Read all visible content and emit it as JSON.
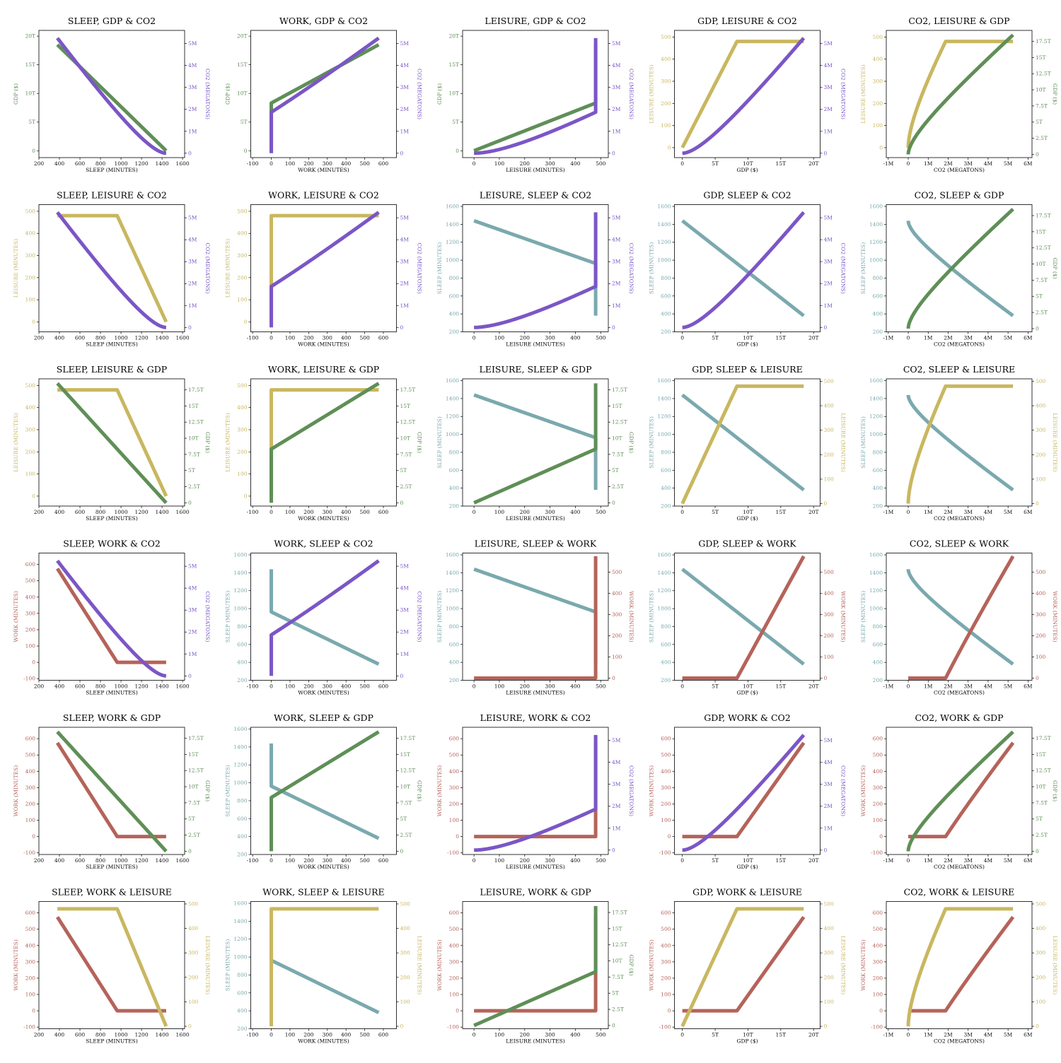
{
  "colors": {
    "SLEEP": "#7aa9ae",
    "WORK": "#b5635a",
    "LEISURE": "#c9b760",
    "GDP": "#5f8f57",
    "CO2": "#7b56c6",
    "axis": "#000000",
    "background": "#ffffff"
  },
  "variables": {
    "SLEEP": {
      "label": "SLEEP (MINUTES)",
      "ticks": [
        200,
        400,
        600,
        800,
        1000,
        1200,
        1400,
        1600
      ],
      "tick_labels": [
        "200",
        "400",
        "600",
        "800",
        "1000",
        "1200",
        "1400",
        "1600"
      ],
      "range": [
        200,
        1620
      ]
    },
    "WORK": {
      "label": "WORK (MINUTES)",
      "ticks": [
        -100,
        0,
        100,
        200,
        300,
        400,
        500,
        600
      ],
      "tick_labels": [
        "-100",
        "0",
        "100",
        "200",
        "300",
        "400",
        "500",
        "600"
      ],
      "range": [
        -110,
        670
      ]
    },
    "LEISURE": {
      "label": "LEISURE (MINUTES)",
      "ticks": [
        0,
        100,
        200,
        300,
        400,
        500
      ],
      "tick_labels": [
        "0",
        "100",
        "200",
        "300",
        "400",
        "500"
      ],
      "range": [
        -45,
        530
      ]
    },
    "GDP": {
      "label": "GDP ($)",
      "ticks": [
        0,
        5,
        10,
        15,
        20
      ],
      "tick_labels": [
        "0",
        "5T",
        "10T",
        "15T",
        "20T"
      ],
      "range": [
        -1.2,
        21
      ]
    },
    "CO2": {
      "label": "CO2 (MEGATONS)",
      "ticks": [
        0,
        1,
        2,
        3,
        4,
        5
      ],
      "tick_labels": [
        "0",
        "1M",
        "2M",
        "3M",
        "4M",
        "5M"
      ],
      "range": [
        -0.2,
        5.6
      ]
    },
    "GDP_twin": {
      "label": "GDP ($)",
      "ticks": [
        0,
        2.5,
        5,
        7.5,
        10,
        12.5,
        15,
        17.5
      ],
      "tick_labels": [
        "0",
        "2.5T",
        "5T",
        "7.5T",
        "10T",
        "12.5T",
        "15T",
        "17.5T"
      ],
      "range": [
        -0.5,
        19.2
      ]
    },
    "LEISURE_twin": {
      "label": "LEISURE (MINUTES)",
      "ticks": [
        0,
        100,
        200,
        300,
        400,
        500
      ],
      "tick_labels": [
        "0",
        "100",
        "200",
        "300",
        "400",
        "500"
      ],
      "range": [
        -10,
        510
      ]
    },
    "WORK_twin": {
      "label": "WORK (MINUTES)",
      "ticks": [
        0,
        100,
        200,
        300,
        400,
        500
      ],
      "tick_labels": [
        "0",
        "100",
        "200",
        "300",
        "400",
        "500"
      ],
      "range": [
        -10,
        590
      ]
    },
    "CO2_twin": {
      "label": "CO2 (MEGATONS)",
      "ticks": [
        0,
        1,
        2,
        3,
        4,
        5
      ],
      "tick_labels": [
        "0",
        "1M",
        "2M",
        "3M",
        "4M",
        "5M"
      ],
      "range": [
        -0.2,
        5.6
      ]
    },
    "CO2_x": {
      "label": "CO2 (MEGATONS)",
      "ticks": [
        -1,
        0,
        1,
        2,
        3,
        4,
        5,
        6
      ],
      "tick_labels": [
        "-1M",
        "0",
        "1M",
        "2M",
        "3M",
        "4M",
        "5M",
        "6M"
      ],
      "range": [
        -1.1,
        6.2
      ]
    },
    "GDP_x": {
      "label": "GDP ($)",
      "ticks": [
        0,
        5,
        10,
        15,
        20
      ],
      "tick_labels": [
        "0",
        "5T",
        "10T",
        "15T",
        "20T"
      ],
      "range": [
        -1.2,
        21
      ]
    },
    "LEISURE_x": {
      "label": "LEISURE (MINUTES)",
      "ticks": [
        0,
        100,
        200,
        300,
        400,
        500
      ],
      "tick_labels": [
        "0",
        "100",
        "200",
        "300",
        "400",
        "500"
      ],
      "range": [
        -45,
        530
      ]
    },
    "WORK_x": {
      "label": "WORK (MINUTES)",
      "ticks": [
        -100,
        0,
        100,
        200,
        300,
        400,
        500,
        600
      ],
      "tick_labels": [
        "-100",
        "0",
        "100",
        "200",
        "300",
        "400",
        "500",
        "600"
      ],
      "range": [
        -110,
        670
      ]
    },
    "SLEEP_x": {
      "label": "SLEEP (MINUTES)",
      "ticks": [
        200,
        400,
        600,
        800,
        1000,
        1200,
        1400,
        1600
      ],
      "tick_labels": [
        "200",
        "400",
        "600",
        "800",
        "1000",
        "1200",
        "1400",
        "1600"
      ],
      "range": [
        200,
        1620
      ]
    }
  },
  "chart_data": [
    {
      "type": "line",
      "title": "SLEEP, GDP & CO2",
      "x": "SLEEP",
      "left": "GDP",
      "right": "CO2"
    },
    {
      "type": "line",
      "title": "WORK, GDP & CO2",
      "x": "WORK",
      "left": "GDP",
      "right": "CO2"
    },
    {
      "type": "line",
      "title": "LEISURE, GDP & CO2",
      "x": "LEISURE",
      "left": "GDP",
      "right": "CO2"
    },
    {
      "type": "line",
      "title": "GDP, LEISURE & CO2",
      "x": "GDP",
      "left": "LEISURE",
      "right": "CO2"
    },
    {
      "type": "line",
      "title": "CO2, LEISURE & GDP",
      "x": "CO2",
      "left": "LEISURE",
      "right": "GDP"
    },
    {
      "type": "line",
      "title": "SLEEP, LEISURE & CO2",
      "x": "SLEEP",
      "left": "LEISURE",
      "right": "CO2"
    },
    {
      "type": "line",
      "title": "WORK, LEISURE & CO2",
      "x": "WORK",
      "left": "LEISURE",
      "right": "CO2"
    },
    {
      "type": "line",
      "title": "LEISURE, SLEEP & CO2",
      "x": "LEISURE",
      "left": "SLEEP",
      "right": "CO2"
    },
    {
      "type": "line",
      "title": "GDP, SLEEP & CO2",
      "x": "GDP",
      "left": "SLEEP",
      "right": "CO2"
    },
    {
      "type": "line",
      "title": "CO2, SLEEP & GDP",
      "x": "CO2",
      "left": "SLEEP",
      "right": "GDP"
    },
    {
      "type": "line",
      "title": "SLEEP, LEISURE & GDP",
      "x": "SLEEP",
      "left": "LEISURE",
      "right": "GDP"
    },
    {
      "type": "line",
      "title": "WORK, LEISURE & GDP",
      "x": "WORK",
      "left": "LEISURE",
      "right": "GDP"
    },
    {
      "type": "line",
      "title": "LEISURE, SLEEP & GDP",
      "x": "LEISURE",
      "left": "SLEEP",
      "right": "GDP"
    },
    {
      "type": "line",
      "title": "GDP, SLEEP & LEISURE",
      "x": "GDP",
      "left": "SLEEP",
      "right": "LEISURE"
    },
    {
      "type": "line",
      "title": "CO2, SLEEP & LEISURE",
      "x": "CO2",
      "left": "SLEEP",
      "right": "LEISURE"
    },
    {
      "type": "line",
      "title": "SLEEP, WORK & CO2",
      "x": "SLEEP",
      "left": "WORK",
      "right": "CO2"
    },
    {
      "type": "line",
      "title": "WORK, SLEEP & CO2",
      "x": "WORK",
      "left": "SLEEP",
      "right": "CO2"
    },
    {
      "type": "line",
      "title": "LEISURE, SLEEP & WORK",
      "x": "LEISURE",
      "left": "SLEEP",
      "right": "WORK"
    },
    {
      "type": "line",
      "title": "GDP, SLEEP & WORK",
      "x": "GDP",
      "left": "SLEEP",
      "right": "WORK"
    },
    {
      "type": "line",
      "title": "CO2, SLEEP & WORK",
      "x": "CO2",
      "left": "SLEEP",
      "right": "WORK"
    },
    {
      "type": "line",
      "title": "SLEEP, WORK & GDP",
      "x": "SLEEP",
      "left": "WORK",
      "right": "GDP"
    },
    {
      "type": "line",
      "title": "WORK, SLEEP & GDP",
      "x": "WORK",
      "left": "SLEEP",
      "right": "GDP"
    },
    {
      "type": "line",
      "title": "LEISURE, WORK & CO2",
      "x": "LEISURE",
      "left": "WORK",
      "right": "CO2"
    },
    {
      "type": "line",
      "title": "GDP, WORK & CO2",
      "x": "GDP",
      "left": "WORK",
      "right": "CO2"
    },
    {
      "type": "line",
      "title": "CO2, WORK & GDP",
      "x": "CO2",
      "left": "WORK",
      "right": "GDP"
    },
    {
      "type": "line",
      "title": "SLEEP, WORK & LEISURE",
      "x": "SLEEP",
      "left": "WORK",
      "right": "LEISURE"
    },
    {
      "type": "line",
      "title": "WORK, SLEEP & LEISURE",
      "x": "WORK",
      "left": "SLEEP",
      "right": "LEISURE"
    },
    {
      "type": "line",
      "title": "LEISURE, WORK & GDP",
      "x": "LEISURE",
      "left": "WORK",
      "right": "GDP"
    },
    {
      "type": "line",
      "title": "GDP, WORK & LEISURE",
      "x": "GDP",
      "left": "WORK",
      "right": "LEISURE"
    },
    {
      "type": "line",
      "title": "CO2, WORK & LEISURE",
      "x": "CO2",
      "left": "WORK",
      "right": "LEISURE"
    }
  ]
}
